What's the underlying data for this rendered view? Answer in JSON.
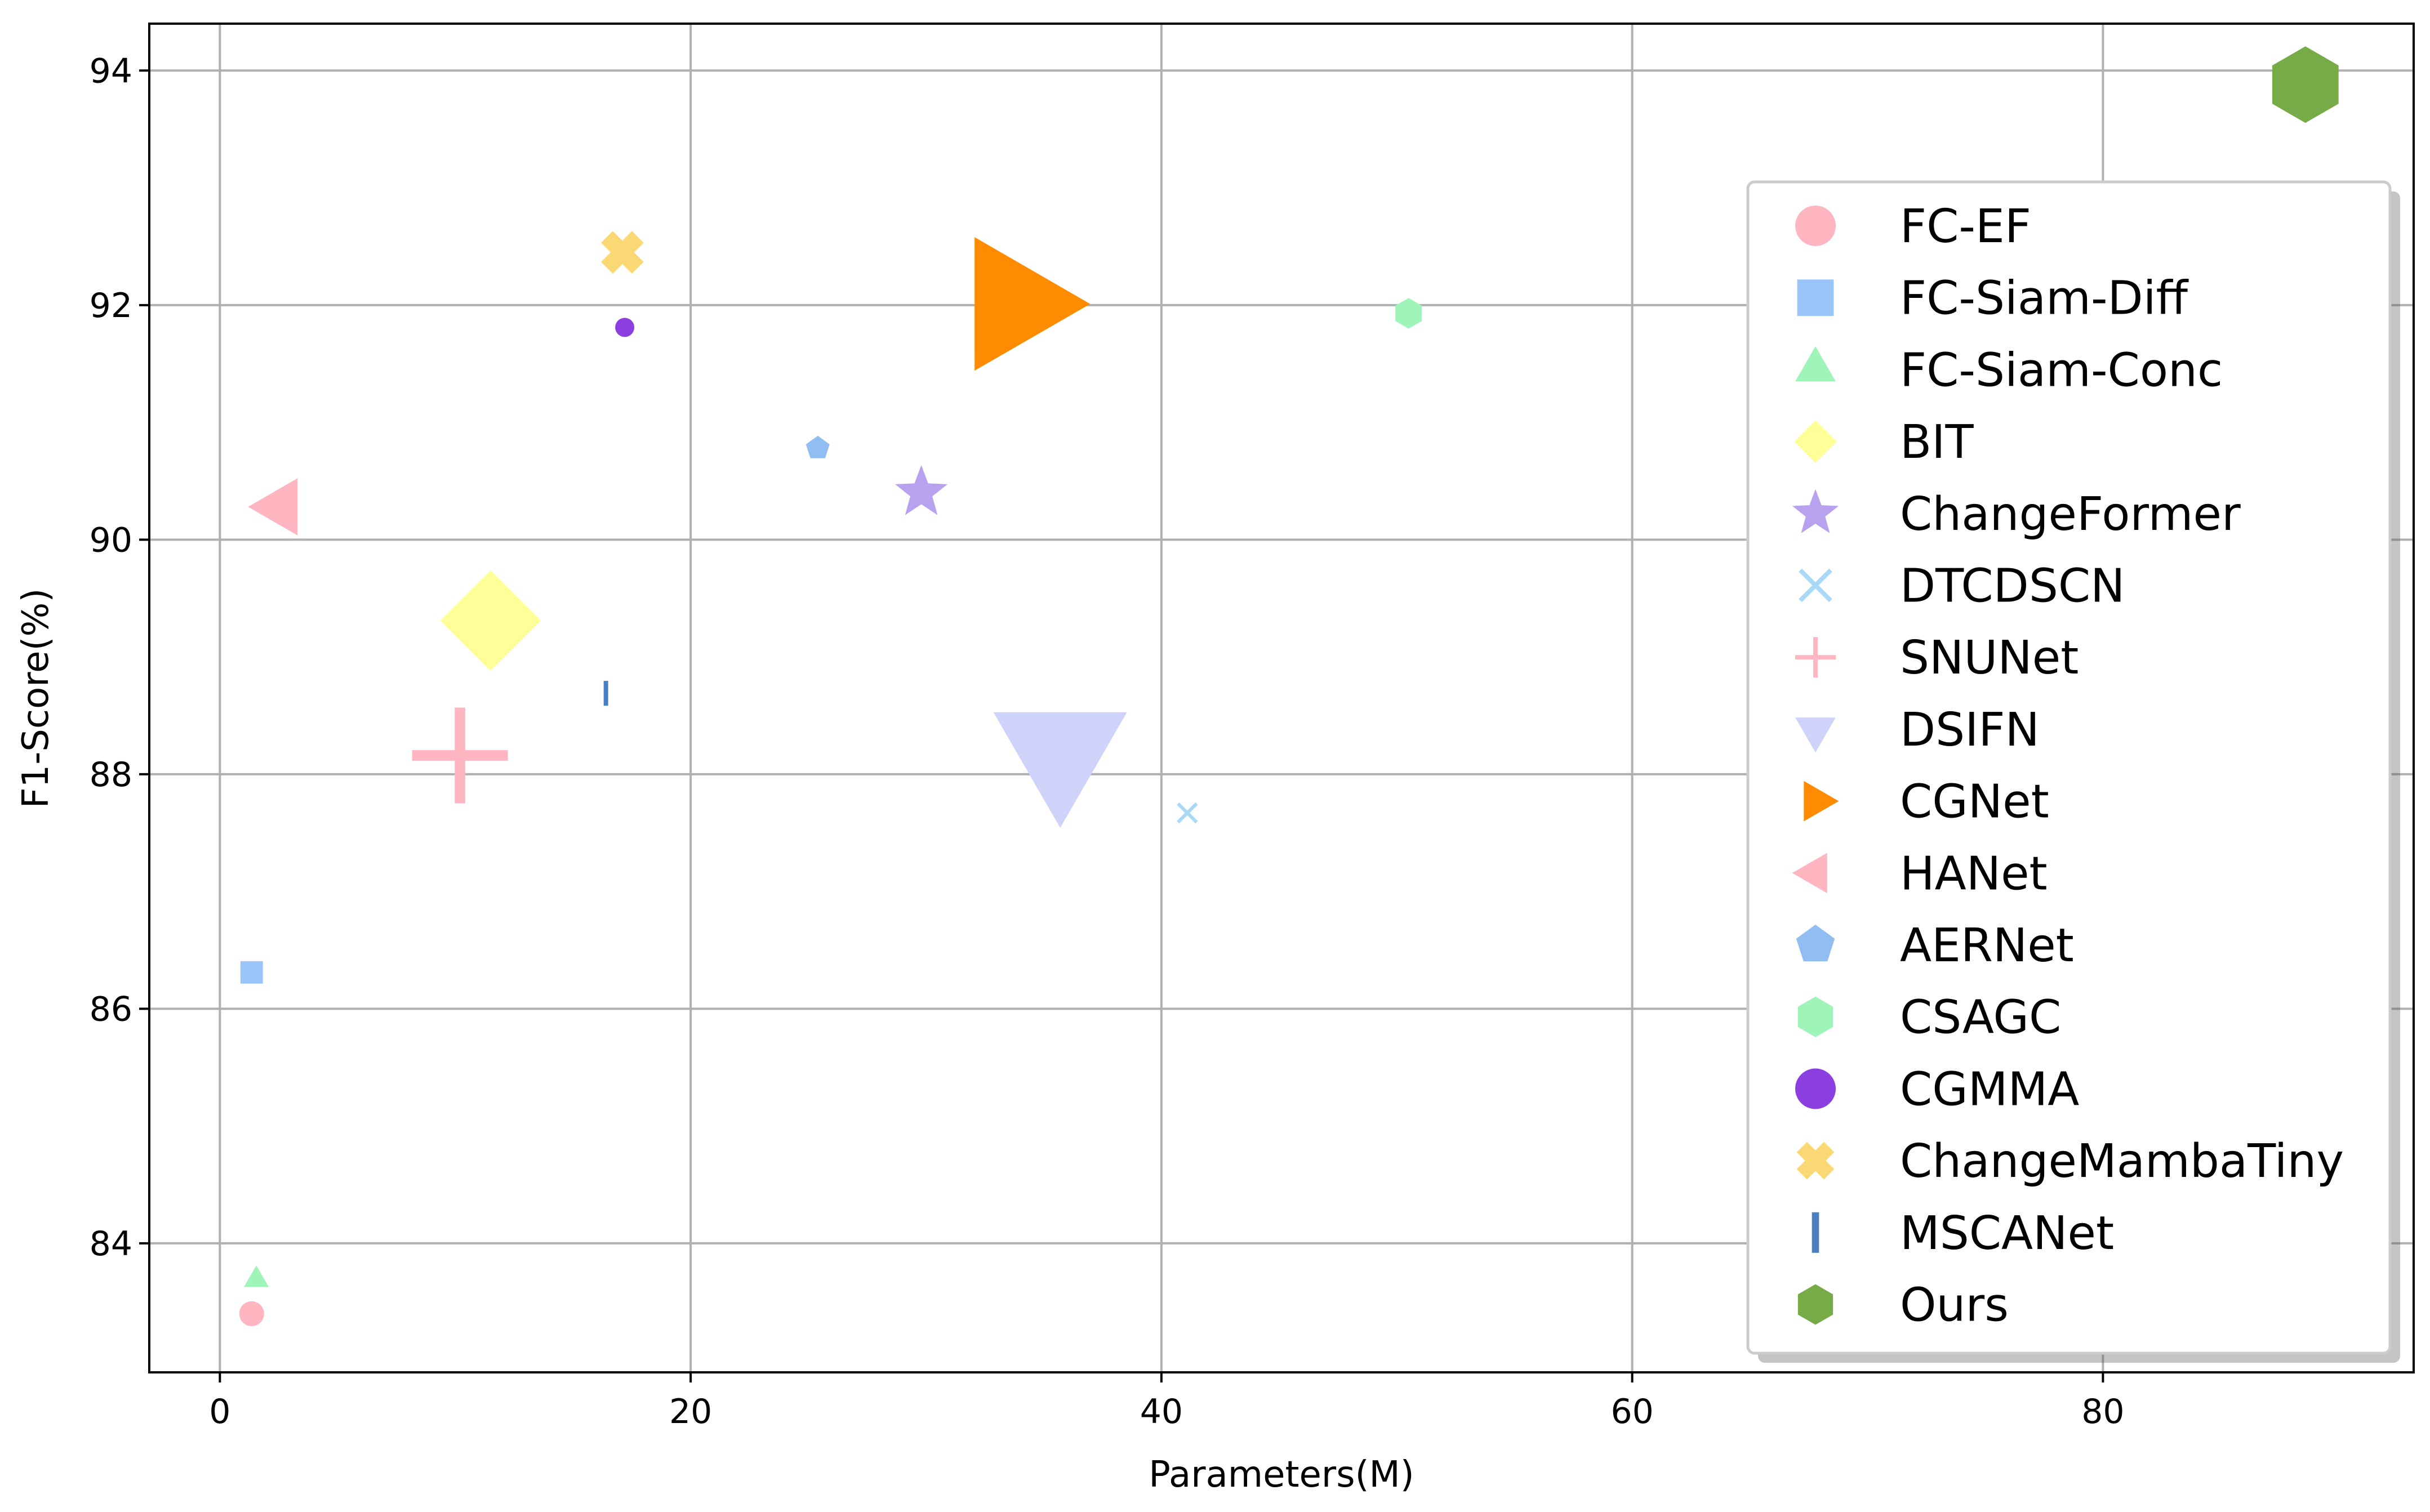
{
  "chart_data": {
    "type": "scatter",
    "title": "",
    "xlabel": "Parameters(M)",
    "ylabel": "F1-Score(%)",
    "xlim": [
      -3.0,
      93.2
    ],
    "ylim": [
      82.9,
      94.4
    ],
    "xticks": [
      0,
      20,
      40,
      60,
      80
    ],
    "yticks": [
      84,
      86,
      88,
      90,
      92,
      94
    ],
    "grid": true,
    "legend_position": "right",
    "series": [
      {
        "name": "FC-EF",
        "marker": "circle",
        "color": "#ffb6c1",
        "x": 1.35,
        "y": 83.4,
        "size": 1.3
      },
      {
        "name": "FC-Siam-Diff",
        "marker": "square",
        "color": "#99c4f7",
        "x": 1.35,
        "y": 86.31,
        "size": 1.3
      },
      {
        "name": "FC-Siam-Conc",
        "marker": "triangle-up",
        "color": "#9ff5b9",
        "x": 1.55,
        "y": 83.69,
        "size": 1.3
      },
      {
        "name": "BIT",
        "marker": "diamond",
        "color": "#ffff99",
        "x": 11.5,
        "y": 89.31,
        "size": 5.0
      },
      {
        "name": "ChangeFormer",
        "marker": "star",
        "color": "#b8a1ee",
        "x": 29.8,
        "y": 90.4,
        "size": 2.4
      },
      {
        "name": "DTCDSCN",
        "marker": "x",
        "color": "#aad9f7",
        "x": 41.1,
        "y": 87.67,
        "size": 1.3
      },
      {
        "name": "SNUNet",
        "marker": "plus",
        "color": "#ffb6c1",
        "x": 10.2,
        "y": 88.16,
        "size": 5.0
      },
      {
        "name": "DSIFN",
        "marker": "triangle-down",
        "color": "#cfd3fa",
        "x": 35.7,
        "y": 88.2,
        "size": 7.0
      },
      {
        "name": "CGNet",
        "marker": "triangle-right",
        "color": "#ff8c00",
        "x": 33.7,
        "y": 92.01,
        "size": 7.0
      },
      {
        "name": "HANet",
        "marker": "triangle-left",
        "color": "#ffb6c1",
        "x": 2.6,
        "y": 90.28,
        "size": 3.0
      },
      {
        "name": "AERNet",
        "marker": "pentagon",
        "color": "#90bdf2",
        "x": 25.4,
        "y": 90.78,
        "size": 1.3
      },
      {
        "name": "CSAGC",
        "marker": "hexagon",
        "color": "#9ff5b9",
        "x": 50.5,
        "y": 91.93,
        "size": 1.6
      },
      {
        "name": "CGMMA",
        "marker": "circle",
        "color": "#8b3fe0",
        "x": 17.2,
        "y": 91.81,
        "size": 1.0
      },
      {
        "name": "ChangeMambaTiny",
        "marker": "x-filled",
        "color": "#fad975",
        "x": 17.1,
        "y": 92.45,
        "size": 2.4
      },
      {
        "name": "MSCANet",
        "marker": "vline",
        "color": "#4a7fc1",
        "x": 16.4,
        "y": 88.69,
        "size": 1.3
      },
      {
        "name": "Ours",
        "marker": "hexagon",
        "color": "#77ab48",
        "x": 88.6,
        "y": 93.88,
        "size": 4.0
      }
    ]
  }
}
